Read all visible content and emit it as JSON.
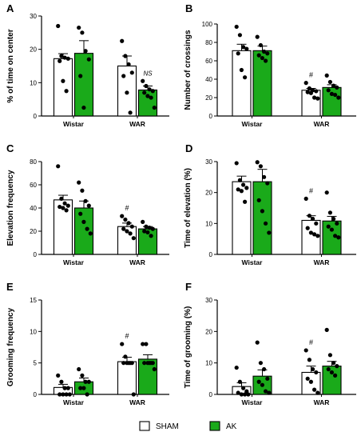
{
  "colors": {
    "sham": "#ffffff",
    "ak": "#1aaa1a",
    "axis": "#000000",
    "dot": "#000000"
  },
  "legend": [
    {
      "name": "SHAM",
      "color": "#ffffff"
    },
    {
      "name": "AK",
      "color": "#1aaa1a"
    }
  ],
  "chart_data": [
    {
      "panel": "A",
      "type": "bar",
      "ylabel": "% of time on center",
      "ylim": [
        0,
        30
      ],
      "yticks": [
        0,
        10,
        20,
        30
      ],
      "categories": [
        "Wistar",
        "WAR"
      ],
      "series": [
        {
          "name": "SHAM",
          "values": [
            17.2,
            15.0
          ],
          "sem": [
            1.5,
            3.0
          ],
          "points": [
            [
              27,
              18,
              17.5,
              17.2,
              16.5,
              10.5,
              7.5
            ],
            [
              22.5,
              18,
              15.5,
              13,
              12,
              7,
              1
            ]
          ]
        },
        {
          "name": "AK",
          "values": [
            18.8,
            7.8
          ],
          "sem": [
            3.8,
            1.2
          ],
          "points": [
            [
              26.5,
              25,
              19.5,
              17,
              12,
              2.5
            ],
            [
              10.5,
              9,
              8,
              7.5,
              7,
              6,
              5.5,
              2.5
            ]
          ]
        }
      ],
      "annotations": [
        {
          "text": "NS",
          "category": "WAR",
          "series": "AK"
        }
      ]
    },
    {
      "panel": "B",
      "type": "bar",
      "ylabel": "Number of crossings",
      "ylim": [
        0,
        100
      ],
      "yticks": [
        0,
        20,
        40,
        60,
        80,
        100
      ],
      "categories": [
        "Wistar",
        "WAR"
      ],
      "series": [
        {
          "name": "SHAM",
          "values": [
            71,
            28
          ],
          "sem": [
            7,
            2
          ],
          "points": [
            [
              97,
              88,
              75,
              73,
              68,
              50,
              42
            ],
            [
              36,
              30,
              28,
              27,
              26,
              25,
              20,
              19
            ]
          ]
        },
        {
          "name": "AK",
          "values": [
            71,
            31
          ],
          "sem": [
            5,
            3
          ],
          "points": [
            [
              86,
              77,
              70,
              68,
              66,
              63,
              60
            ],
            [
              44,
              37,
              33,
              31,
              28,
              24,
              23,
              20
            ]
          ]
        }
      ],
      "annotations": [
        {
          "text": "#",
          "category": "WAR",
          "series": "SHAM"
        }
      ]
    },
    {
      "panel": "C",
      "type": "bar",
      "ylabel": "Elevation frequency",
      "ylim": [
        0,
        80
      ],
      "yticks": [
        0,
        20,
        40,
        60,
        80
      ],
      "categories": [
        "Wistar",
        "WAR"
      ],
      "series": [
        {
          "name": "SHAM",
          "values": [
            47,
            24
          ],
          "sem": [
            4,
            3
          ],
          "points": [
            [
              76,
              48,
              44,
              42,
              41,
              40,
              38
            ],
            [
              33,
              30,
              27,
              24,
              22,
              20,
              18,
              14
            ]
          ]
        },
        {
          "name": "AK",
          "values": [
            40,
            22
          ],
          "sem": [
            6,
            2
          ],
          "points": [
            [
              62,
              55,
              46,
              42,
              35,
              28,
              22,
              18
            ],
            [
              28,
              24,
              23,
              22,
              20,
              19,
              16
            ]
          ]
        }
      ],
      "annotations": [
        {
          "text": "#",
          "category": "WAR",
          "series": "SHAM"
        }
      ]
    },
    {
      "panel": "D",
      "type": "bar",
      "ylabel": "Time of elevation (%)",
      "ylim": [
        0,
        30
      ],
      "yticks": [
        0,
        10,
        20,
        30
      ],
      "categories": [
        "Wistar",
        "WAR"
      ],
      "series": [
        {
          "name": "SHAM",
          "values": [
            23.5,
            11.0
          ],
          "sem": [
            1.8,
            1.5
          ],
          "points": [
            [
              29.5,
              24,
              22.5,
              21.5,
              21,
              20.5,
              17
            ],
            [
              18,
              12.5,
              11.5,
              10,
              8.5,
              7,
              6.5,
              6
            ]
          ]
        },
        {
          "name": "AK",
          "values": [
            23.5,
            10.8
          ],
          "sem": [
            4.0,
            1.5
          ],
          "points": [
            [
              29.8,
              28.5,
              25,
              23,
              17.5,
              14,
              10,
              7
            ],
            [
              20,
              13.5,
              11.5,
              10,
              9,
              8,
              6,
              5.5
            ]
          ]
        }
      ],
      "annotations": [
        {
          "text": "#",
          "category": "WAR",
          "series": "SHAM"
        }
      ]
    },
    {
      "panel": "E",
      "type": "bar",
      "ylabel": "Grooming frequency",
      "ylim": [
        0,
        15
      ],
      "yticks": [
        0,
        5,
        10,
        15
      ],
      "categories": [
        "Wistar",
        "WAR"
      ],
      "series": [
        {
          "name": "SHAM",
          "values": [
            1.1,
            5.2
          ],
          "sem": [
            0.5,
            0.7
          ],
          "points": [
            [
              3,
              2,
              1,
              1,
              0,
              0,
              0,
              0
            ],
            [
              8,
              6,
              5,
              5,
              5,
              5,
              5,
              0
            ]
          ]
        },
        {
          "name": "AK",
          "values": [
            2.0,
            5.6
          ],
          "sem": [
            0.6,
            0.7
          ],
          "points": [
            [
              4,
              3,
              2,
              2,
              1,
              1,
              0
            ],
            [
              8,
              8,
              5,
              5,
              5,
              5,
              5,
              4
            ]
          ]
        }
      ],
      "annotations": [
        {
          "text": "#",
          "category": "WAR",
          "series": "SHAM"
        }
      ]
    },
    {
      "panel": "F",
      "type": "bar",
      "ylabel": "Time of grooming (%)",
      "ylim": [
        0,
        30
      ],
      "yticks": [
        0,
        10,
        20,
        30
      ],
      "categories": [
        "Wistar",
        "WAR"
      ],
      "series": [
        {
          "name": "SHAM",
          "values": [
            2.5,
            7.0
          ],
          "sem": [
            1.2,
            2.0
          ],
          "points": [
            [
              8.5,
              4,
              2,
              1,
              0.5,
              0,
              0,
              0
            ],
            [
              14,
              11,
              8,
              7,
              5,
              4,
              1.5,
              0.5
            ]
          ]
        },
        {
          "name": "AK",
          "values": [
            5.8,
            9.0
          ],
          "sem": [
            2.0,
            1.5
          ],
          "points": [
            [
              16.5,
              10,
              8,
              5,
              4,
              3,
              1,
              0.5
            ],
            [
              20.5,
              12.5,
              10,
              9,
              8,
              7,
              6
            ]
          ]
        }
      ],
      "annotations": [
        {
          "text": "#",
          "category": "WAR",
          "series": "SHAM"
        }
      ]
    }
  ]
}
